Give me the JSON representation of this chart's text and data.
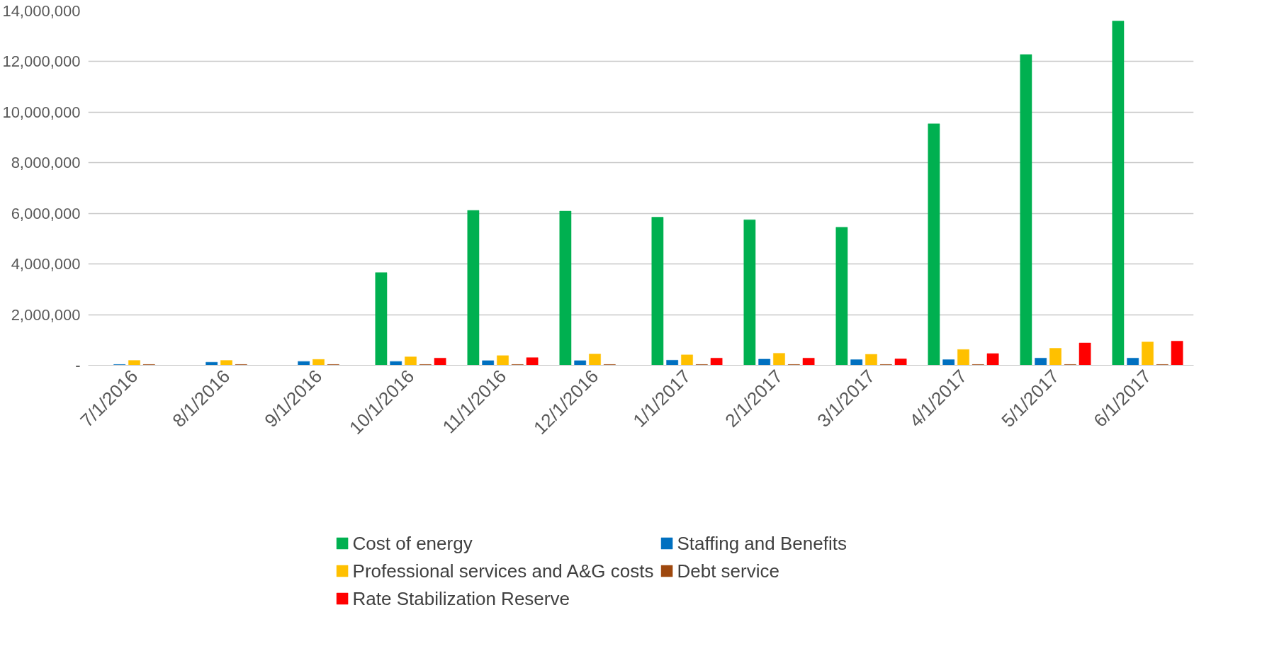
{
  "chart_data": {
    "type": "bar",
    "categories": [
      "7/1/2016",
      "8/1/2016",
      "9/1/2016",
      "10/1/2016",
      "11/1/2016",
      "12/1/2016",
      "1/1/2017",
      "2/1/2017",
      "3/1/2017",
      "4/1/2017",
      "5/1/2017",
      "6/1/2017"
    ],
    "series": [
      {
        "name": "Cost of energy",
        "color": "#00b050",
        "values": [
          0,
          0,
          0,
          3660000,
          6120000,
          6090000,
          5850000,
          5750000,
          5450000,
          9540000,
          12280000,
          13600000
        ]
      },
      {
        "name": "Staffing and Benefits",
        "color": "#0070c0",
        "values": [
          30000,
          120000,
          150000,
          150000,
          180000,
          180000,
          200000,
          240000,
          220000,
          220000,
          280000,
          280000
        ]
      },
      {
        "name": "Professional services and A&G costs",
        "color": "#ffc000",
        "values": [
          190000,
          190000,
          230000,
          330000,
          380000,
          440000,
          410000,
          470000,
          430000,
          620000,
          670000,
          920000
        ]
      },
      {
        "name": "Debt service",
        "color": "#9e480e",
        "values": [
          30000,
          30000,
          30000,
          30000,
          30000,
          30000,
          30000,
          30000,
          30000,
          30000,
          30000,
          30000
        ]
      },
      {
        "name": "Rate Stabilization Reserve",
        "color": "#ff0000",
        "values": [
          0,
          0,
          0,
          280000,
          300000,
          0,
          280000,
          280000,
          250000,
          460000,
          880000,
          950000
        ]
      }
    ],
    "ylim": [
      0,
      14000000
    ],
    "yticks": [
      {
        "value": 0,
        "label": "-"
      },
      {
        "value": 2000000,
        "label": "2,000,000"
      },
      {
        "value": 4000000,
        "label": "4,000,000"
      },
      {
        "value": 6000000,
        "label": "6,000,000"
      },
      {
        "value": 8000000,
        "label": "8,000,000"
      },
      {
        "value": 10000000,
        "label": "10,000,000"
      },
      {
        "value": 12000000,
        "label": "12,000,000"
      },
      {
        "value": 14000000,
        "label": "14,000,000"
      }
    ],
    "grid": "y",
    "legend": "bottom"
  }
}
